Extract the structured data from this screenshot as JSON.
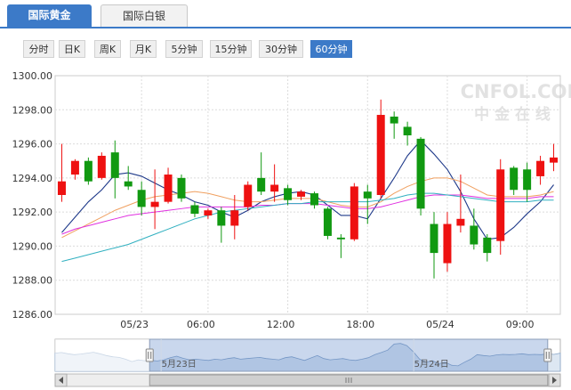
{
  "tabs": [
    {
      "label": "国际黄金",
      "active": true
    },
    {
      "label": "国际白银",
      "active": false
    }
  ],
  "periods": [
    {
      "label": "分时",
      "active": false
    },
    {
      "label": "日K",
      "active": false
    },
    {
      "label": "周K",
      "active": false
    },
    {
      "label": "月K",
      "active": false
    },
    {
      "label": "5分钟",
      "active": false
    },
    {
      "label": "15分钟",
      "active": false
    },
    {
      "label": "30分钟",
      "active": false
    },
    {
      "label": "60分钟",
      "active": true
    }
  ],
  "watermark": {
    "brand": "CNFOL.COM",
    "subtitle": "中 金 在 线"
  },
  "colors": {
    "up": "#ee1111",
    "down": "#119911",
    "ma1": "#1f3a8a",
    "ma2": "#f0a060",
    "ma3": "#e030e0",
    "ma4": "#30b0c0",
    "accent": "#3c7ac8"
  },
  "chart_data": {
    "type": "candlestick",
    "ylim": [
      1286,
      1300
    ],
    "y_ticks": [
      "1300.00",
      "1298.00",
      "1296.00",
      "1294.00",
      "1292.00",
      "1290.00",
      "1288.00",
      "1286.00"
    ],
    "x_labels": [
      {
        "label": "05/23",
        "index": 6.5
      },
      {
        "label": "06:00",
        "index": 11.5
      },
      {
        "label": "12:00",
        "index": 17.5
      },
      {
        "label": "18:00",
        "index": 23.5
      },
      {
        "label": "05/24",
        "index": 29.5
      },
      {
        "label": "09:00",
        "index": 35.5
      }
    ],
    "candles": [
      {
        "o": 1293.0,
        "c": 1293.8,
        "h": 1296.0,
        "l": 1292.6
      },
      {
        "o": 1294.2,
        "c": 1295.0,
        "h": 1295.1,
        "l": 1293.9
      },
      {
        "o": 1295.0,
        "c": 1293.8,
        "h": 1295.2,
        "l": 1293.6
      },
      {
        "o": 1294.0,
        "c": 1295.3,
        "h": 1295.5,
        "l": 1293.9
      },
      {
        "o": 1295.5,
        "c": 1294.0,
        "h": 1296.2,
        "l": 1292.8
      },
      {
        "o": 1293.8,
        "c": 1293.5,
        "h": 1294.7,
        "l": 1293.3
      },
      {
        "o": 1293.3,
        "c": 1292.3,
        "h": 1293.8,
        "l": 1291.8
      },
      {
        "o": 1292.3,
        "c": 1292.6,
        "h": 1294.5,
        "l": 1291.0
      },
      {
        "o": 1292.6,
        "c": 1294.2,
        "h": 1294.6,
        "l": 1292.5
      },
      {
        "o": 1294.0,
        "c": 1292.8,
        "h": 1294.2,
        "l": 1292.6
      },
      {
        "o": 1292.4,
        "c": 1291.9,
        "h": 1292.6,
        "l": 1291.7
      },
      {
        "o": 1291.8,
        "c": 1292.1,
        "h": 1292.2,
        "l": 1291.6
      },
      {
        "o": 1292.1,
        "c": 1291.2,
        "h": 1292.3,
        "l": 1290.2
      },
      {
        "o": 1291.2,
        "c": 1292.1,
        "h": 1293.0,
        "l": 1290.4
      },
      {
        "o": 1292.3,
        "c": 1293.6,
        "h": 1293.8,
        "l": 1292.1
      },
      {
        "o": 1294.0,
        "c": 1293.2,
        "h": 1295.5,
        "l": 1293.0
      },
      {
        "o": 1293.2,
        "c": 1293.6,
        "h": 1294.8,
        "l": 1292.6
      },
      {
        "o": 1293.4,
        "c": 1292.7,
        "h": 1293.6,
        "l": 1292.4
      },
      {
        "o": 1292.9,
        "c": 1293.2,
        "h": 1293.3,
        "l": 1292.7
      },
      {
        "o": 1293.1,
        "c": 1292.4,
        "h": 1293.2,
        "l": 1292.2
      },
      {
        "o": 1292.2,
        "c": 1290.6,
        "h": 1292.3,
        "l": 1290.4
      },
      {
        "o": 1290.5,
        "c": 1290.4,
        "h": 1290.7,
        "l": 1289.3
      },
      {
        "o": 1290.4,
        "c": 1293.5,
        "h": 1293.7,
        "l": 1290.3
      },
      {
        "o": 1293.2,
        "c": 1292.8,
        "h": 1293.6,
        "l": 1291.3
      },
      {
        "o": 1293.0,
        "c": 1297.7,
        "h": 1298.6,
        "l": 1292.8
      },
      {
        "o": 1297.6,
        "c": 1297.2,
        "h": 1297.9,
        "l": 1296.3
      },
      {
        "o": 1297.0,
        "c": 1296.5,
        "h": 1297.3,
        "l": 1295.9
      },
      {
        "o": 1296.3,
        "c": 1292.2,
        "h": 1296.4,
        "l": 1291.8
      },
      {
        "o": 1291.3,
        "c": 1289.6,
        "h": 1292.0,
        "l": 1288.1
      },
      {
        "o": 1289.0,
        "c": 1291.3,
        "h": 1292.0,
        "l": 1288.5
      },
      {
        "o": 1291.2,
        "c": 1291.6,
        "h": 1294.2,
        "l": 1290.8
      },
      {
        "o": 1291.2,
        "c": 1290.1,
        "h": 1292.2,
        "l": 1289.8
      },
      {
        "o": 1290.5,
        "c": 1289.6,
        "h": 1290.7,
        "l": 1289.1
      },
      {
        "o": 1290.3,
        "c": 1294.5,
        "h": 1295.1,
        "l": 1289.5
      },
      {
        "o": 1294.6,
        "c": 1293.3,
        "h": 1294.7,
        "l": 1293.0
      },
      {
        "o": 1294.5,
        "c": 1293.3,
        "h": 1294.9,
        "l": 1292.6
      },
      {
        "o": 1294.1,
        "c": 1295.0,
        "h": 1295.3,
        "l": 1293.6
      },
      {
        "o": 1294.9,
        "c": 1295.2,
        "h": 1296.0,
        "l": 1294.4
      }
    ],
    "ma_lines": [
      {
        "color": "#1f3a8a",
        "values": [
          1290.8,
          1291.7,
          1292.6,
          1293.3,
          1294.2,
          1294.3,
          1294.1,
          1293.7,
          1293.3,
          1293.0,
          1292.6,
          1292.4,
          1292.0,
          1291.7,
          1292.1,
          1292.6,
          1292.9,
          1293.1,
          1293.2,
          1293.0,
          1292.4,
          1291.8,
          1291.8,
          1291.6,
          1292.8,
          1294.0,
          1295.3,
          1296.2,
          1295.4,
          1294.5,
          1293.2,
          1291.6,
          1290.4,
          1290.5,
          1291.1,
          1291.9,
          1292.6,
          1293.6
        ]
      },
      {
        "color": "#f0a060",
        "values": [
          1290.5,
          1290.9,
          1291.3,
          1291.7,
          1292.1,
          1292.4,
          1292.7,
          1292.9,
          1293.0,
          1293.1,
          1293.2,
          1293.1,
          1292.9,
          1292.7,
          1292.6,
          1292.6,
          1292.7,
          1292.8,
          1292.8,
          1292.8,
          1292.6,
          1292.4,
          1292.3,
          1292.3,
          1292.6,
          1293.1,
          1293.5,
          1293.8,
          1294.0,
          1294.0,
          1293.8,
          1293.4,
          1293.0,
          1292.9,
          1292.9,
          1292.9,
          1293.0,
          1293.2
        ]
      },
      {
        "color": "#e030e0",
        "values": [
          1290.7,
          1291.0,
          1291.2,
          1291.4,
          1291.6,
          1291.8,
          1291.9,
          1292.0,
          1292.1,
          1292.2,
          1292.3,
          1292.3,
          1292.3,
          1292.3,
          1292.3,
          1292.4,
          1292.4,
          1292.5,
          1292.5,
          1292.5,
          1292.4,
          1292.3,
          1292.2,
          1292.2,
          1292.3,
          1292.5,
          1292.7,
          1292.9,
          1293.0,
          1293.0,
          1293.0,
          1292.9,
          1292.8,
          1292.8,
          1292.8,
          1292.8,
          1292.9,
          1292.9
        ]
      },
      {
        "color": "#30b0c0",
        "values": [
          1289.1,
          1289.3,
          1289.5,
          1289.7,
          1289.9,
          1290.1,
          1290.4,
          1290.7,
          1291.0,
          1291.3,
          1291.6,
          1291.8,
          1292.0,
          1292.1,
          1292.2,
          1292.3,
          1292.4,
          1292.5,
          1292.5,
          1292.6,
          1292.6,
          1292.6,
          1292.6,
          1292.6,
          1292.7,
          1292.8,
          1293.0,
          1293.1,
          1293.1,
          1293.0,
          1292.9,
          1292.8,
          1292.7,
          1292.6,
          1292.6,
          1292.6,
          1292.7,
          1292.7
        ]
      }
    ]
  },
  "navigator": {
    "labels": [
      {
        "label": "5月23日",
        "pos": 0.245
      },
      {
        "label": "5月24日",
        "pos": 0.745
      }
    ],
    "window": [
      0.187,
      0.975
    ],
    "profile": [
      0.6,
      0.62,
      0.58,
      0.55,
      0.57,
      0.6,
      0.63,
      0.58,
      0.52,
      0.48,
      0.46,
      0.4,
      0.32,
      0.38,
      0.35,
      0.36,
      0.34,
      0.38,
      0.45,
      0.5,
      0.43,
      0.38,
      0.4,
      0.38,
      0.36,
      0.4,
      0.38,
      0.42,
      0.45,
      0.4,
      0.42,
      0.44,
      0.46,
      0.42,
      0.4,
      0.38,
      0.45,
      0.48,
      0.42,
      0.36,
      0.44,
      0.52,
      0.42,
      0.38,
      0.4,
      0.42,
      0.38,
      0.36,
      0.4,
      0.45,
      0.55,
      0.62,
      0.7,
      0.9,
      0.92,
      0.85,
      0.65,
      0.4,
      0.3,
      0.35,
      0.25,
      0.3,
      0.2,
      0.18,
      0.3,
      0.4,
      0.55,
      0.52,
      0.5,
      0.54,
      0.56,
      0.55,
      0.56,
      0.58,
      0.55,
      0.56,
      0.55,
      0.58,
      0.56,
      0.6
    ]
  }
}
